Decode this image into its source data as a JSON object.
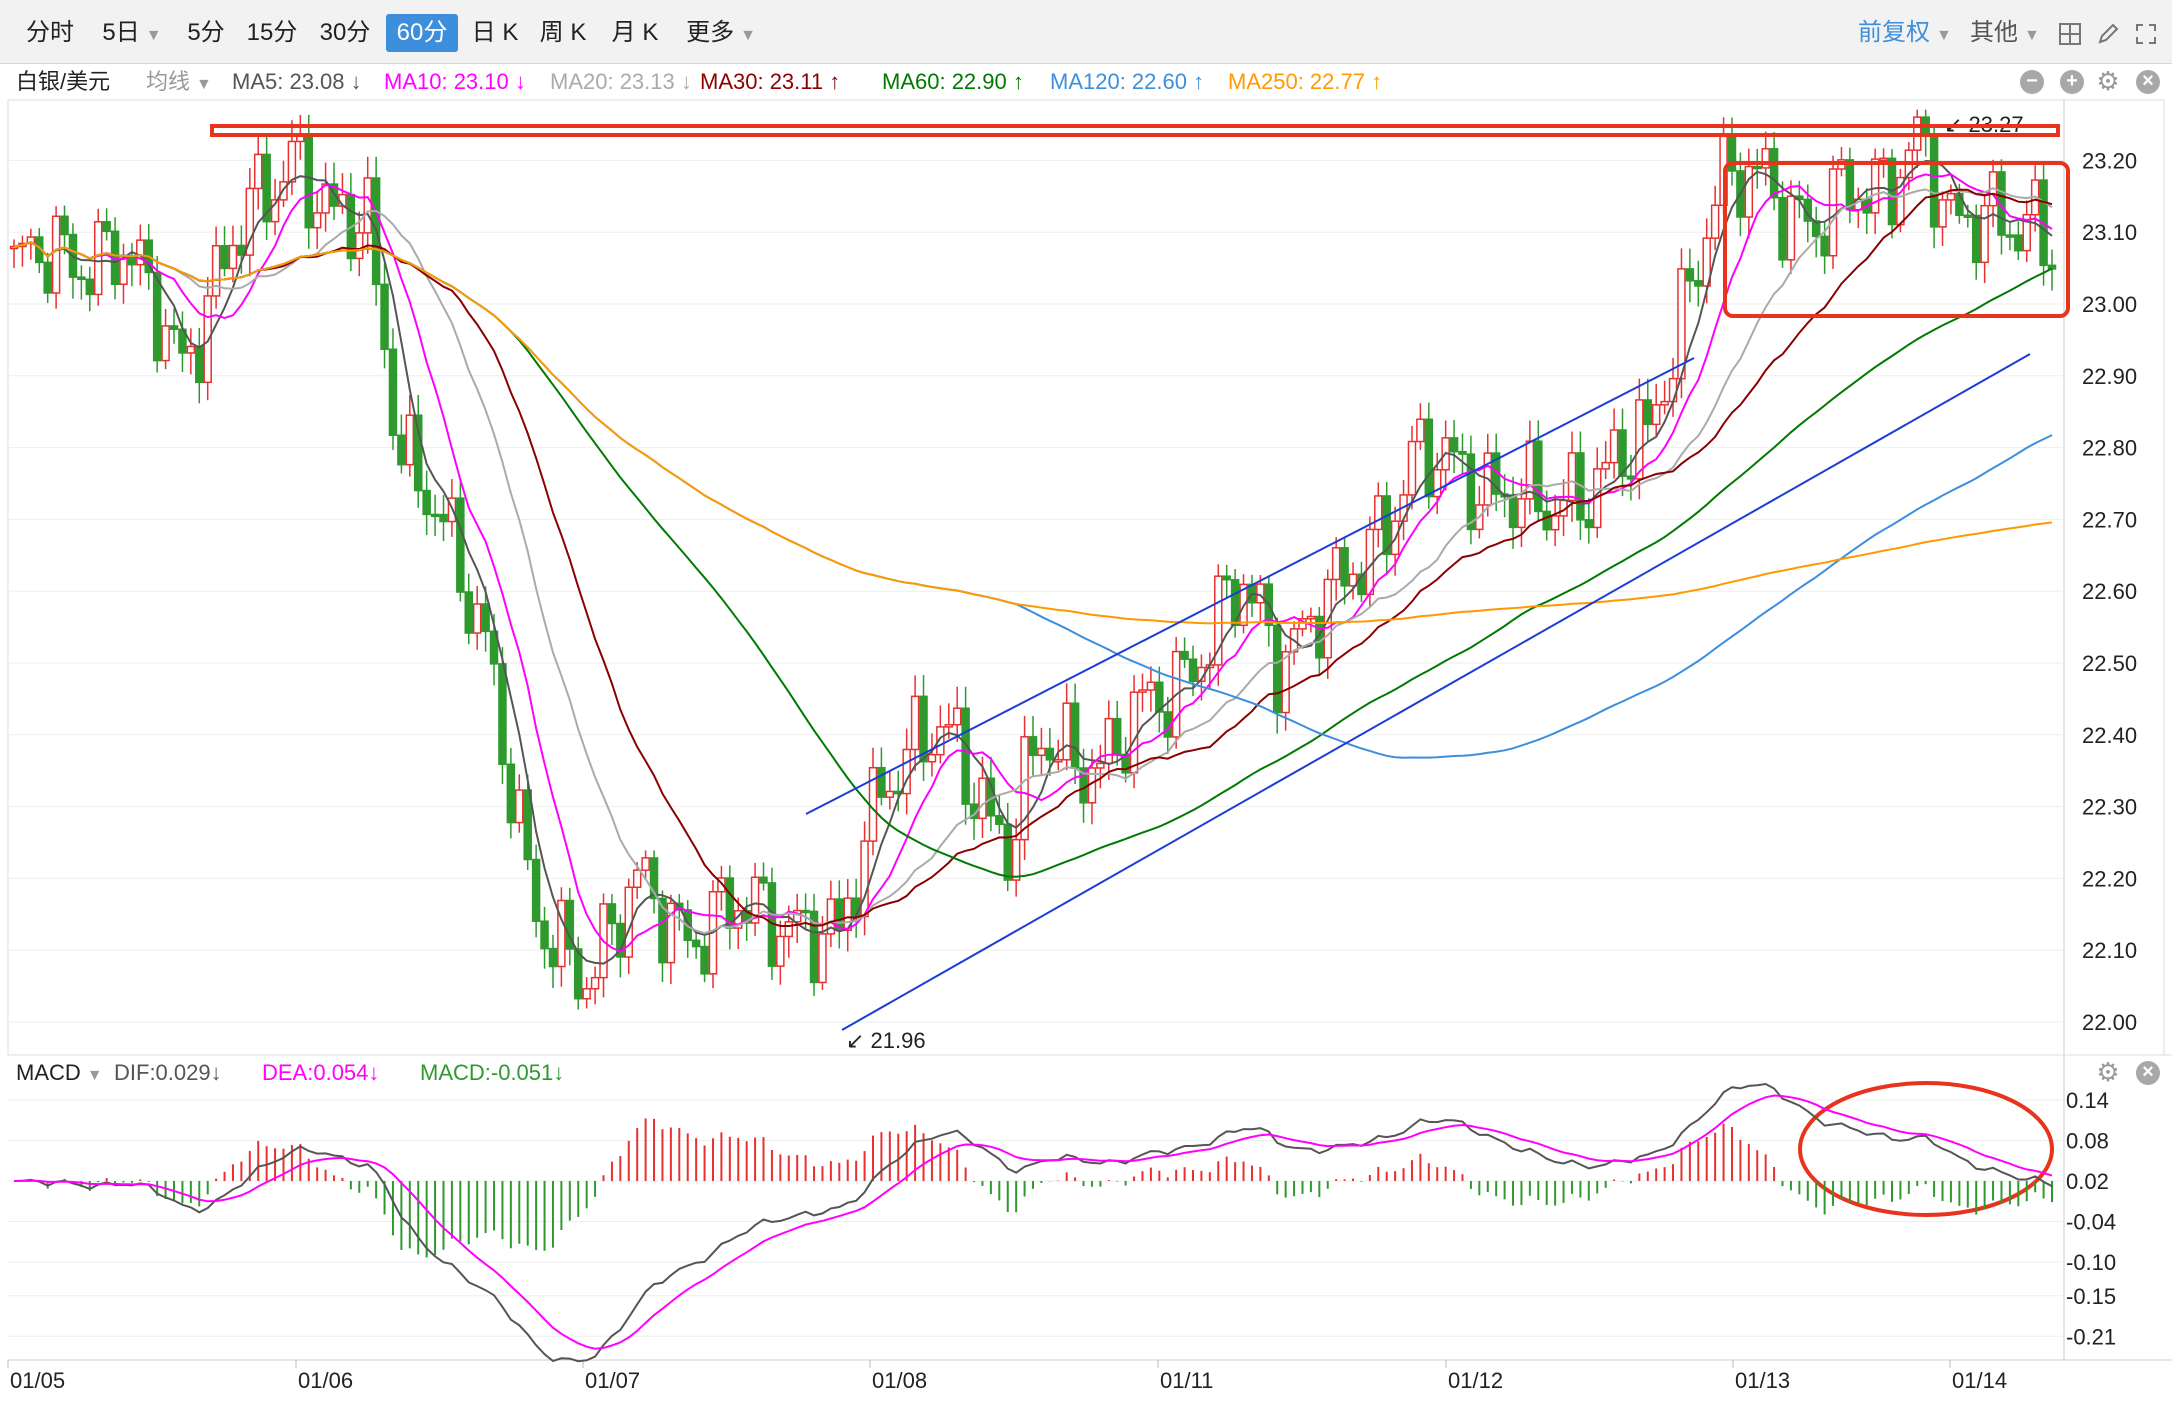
{
  "toolbar": {
    "tabs": [
      {
        "label": "分时",
        "dropdown": false,
        "active": false
      },
      {
        "label": "5日",
        "dropdown": true,
        "active": false
      },
      {
        "label": "5分",
        "dropdown": false,
        "active": false
      },
      {
        "label": "15分",
        "dropdown": false,
        "active": false
      },
      {
        "label": "30分",
        "dropdown": false,
        "active": false
      },
      {
        "label": "60分",
        "dropdown": false,
        "active": true
      },
      {
        "label": "日 K",
        "dropdown": false,
        "active": false
      },
      {
        "label": "周 K",
        "dropdown": false,
        "active": false
      },
      {
        "label": "月 K",
        "dropdown": false,
        "active": false
      },
      {
        "label": "更多",
        "dropdown": true,
        "active": false
      }
    ],
    "adjust_label": "前复权",
    "other_label": "其他",
    "accent_color": "#3d8fdc"
  },
  "legend": {
    "symbol": "白银/美元",
    "avg_label": "均线",
    "items": [
      {
        "text": "MA5: 23.08 ↓",
        "color": "#555555"
      },
      {
        "text": "MA10: 23.10 ↓",
        "color": "#ff00ff"
      },
      {
        "text": "MA20: 23.13 ↓",
        "color": "#aaaaaa"
      },
      {
        "text": "MA30: 23.11 ↑",
        "color": "#8b0000"
      },
      {
        "text": "MA60: 22.90 ↑",
        "color": "#007a00"
      },
      {
        "text": "MA120: 22.60 ↑",
        "color": "#3d8fdc"
      },
      {
        "text": "MA250: 22.77 ↑",
        "color": "#ff9900"
      }
    ]
  },
  "macd_legend": {
    "title": "MACD",
    "dif": "DIF:0.029↓",
    "dea": "DEA:0.054↓",
    "macd": "MACD:-0.051↓"
  },
  "chart_data": [
    {
      "type": "candlestick",
      "title": "白银/美元",
      "period": "60分",
      "x_tick_labels": [
        "01/05",
        "01/06",
        "01/07",
        "01/08",
        "01/11",
        "01/12",
        "01/13",
        "01/14"
      ],
      "y_tick_labels": [
        "23.20",
        "23.10",
        "23.00",
        "22.90",
        "22.80",
        "22.70",
        "22.60",
        "22.50",
        "22.40",
        "22.30",
        "22.20",
        "22.10",
        "22.00"
      ],
      "ylim": [
        21.96,
        23.27
      ],
      "annotations": [
        {
          "text": "23.27",
          "kind": "max"
        },
        {
          "text": "21.96",
          "kind": "min"
        }
      ],
      "up_color": "#e83030",
      "down_color": "#2e9a2e",
      "series_names": [
        "MA5",
        "MA10",
        "MA20",
        "MA30",
        "MA60",
        "MA120",
        "MA250"
      ],
      "series_colors": [
        "#555555",
        "#ff00ff",
        "#aaaaaa",
        "#8b0000",
        "#007a00",
        "#3d8fdc",
        "#ff9900"
      ],
      "ma_last_values": [
        23.08,
        23.1,
        23.13,
        23.11,
        22.9,
        22.6,
        22.77
      ]
    },
    {
      "type": "macd",
      "title": "MACD",
      "y_tick_labels": [
        "0.14",
        "0.08",
        "0.02",
        "-0.04",
        "-0.10",
        "-0.15",
        "-0.21"
      ],
      "ylim": [
        -0.21,
        0.14
      ],
      "dif_last": 0.029,
      "dea_last": 0.054,
      "macd_last": -0.051
    }
  ]
}
